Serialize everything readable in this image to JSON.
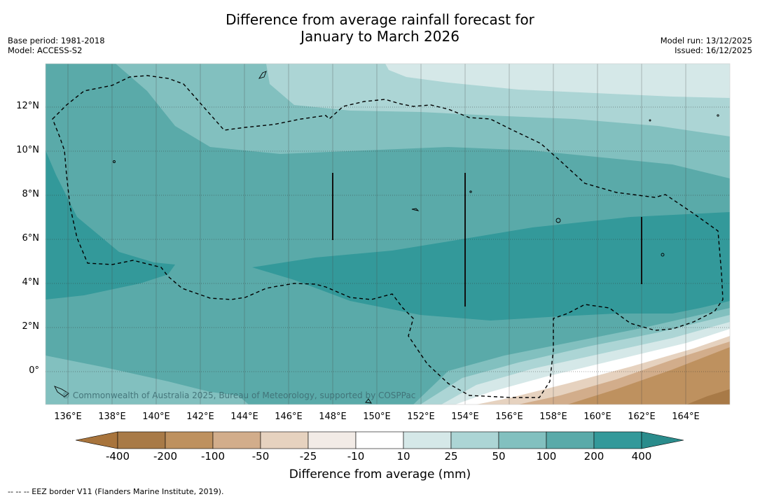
{
  "title": {
    "line1": "Difference from average rainfall forecast for",
    "line2": "January to March 2026"
  },
  "meta_left": {
    "base_period": "Base period: 1981-2018",
    "model": "Model: ACCESS-S2"
  },
  "meta_right": {
    "model_run": "Model run: 13/12/2025",
    "issued": "Issued: 16/12/2025"
  },
  "credit": "© Commonwealth of Australia 2025, Bureau of Meteorology, supported by COSPPac",
  "axes": {
    "x_ticks": [
      "136°E",
      "138°E",
      "140°E",
      "142°E",
      "144°E",
      "146°E",
      "148°E",
      "150°E",
      "152°E",
      "154°E",
      "156°E",
      "158°E",
      "160°E",
      "162°E",
      "164°E"
    ],
    "y_ticks": [
      "12°N",
      "10°N",
      "8°N",
      "6°N",
      "4°N",
      "2°N",
      "0°"
    ]
  },
  "colorbar": {
    "ticks": [
      "-400",
      "-200",
      "-100",
      "-50",
      "-25",
      "-10",
      "10",
      "25",
      "50",
      "100",
      "200",
      "400"
    ],
    "colors": [
      "#a8743c",
      "#a87a47",
      "#be915f",
      "#d2ad8b",
      "#e6d2bf",
      "#f2ebe6",
      "#ffffff",
      "#d5e8e8",
      "#acd5d5",
      "#82c0bf",
      "#5aaaa9",
      "#33999a",
      "#2a8c8c"
    ],
    "label": "Difference from average (mm)"
  },
  "legend_footnote": "-- -- -- EEZ border V11 (Flanders Marine Institute, 2019)."
}
